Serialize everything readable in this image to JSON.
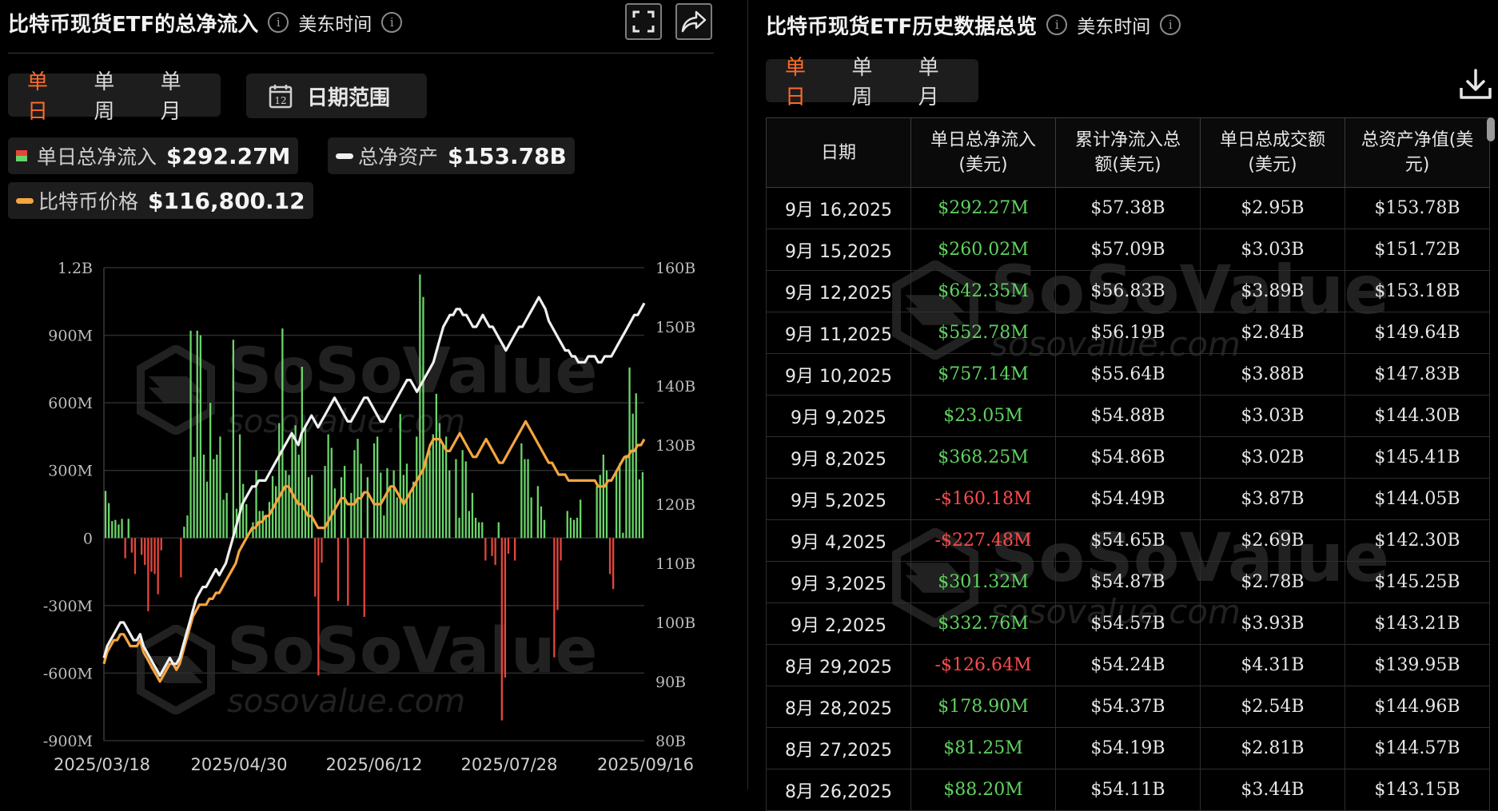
{
  "left": {
    "title": "比特币现货ETF的总净流入",
    "timezone": "美东时间",
    "tabs": [
      "单日",
      "单周",
      "单月"
    ],
    "active_tab": 0,
    "date_range_label": "日期范围",
    "calendar_day": "12",
    "legend": {
      "inflow_label": "单日总净流入",
      "inflow_value": "$292.27M",
      "assets_label": "总净资产",
      "assets_value": "$153.78B",
      "price_label": "比特币价格",
      "price_value": "$116,800.12"
    }
  },
  "right": {
    "title": "比特币现货ETF历史数据总览",
    "timezone": "美东时间",
    "tabs": [
      "单日",
      "单周",
      "单月"
    ],
    "active_tab": 0,
    "columns": [
      "日期",
      "单日总净流入\n(美元)",
      "累计净流入总\n额(美元)",
      "单日总成交额\n(美元)",
      "总资产净值(美\n元)"
    ],
    "rows": [
      [
        "9月 16,2025",
        "$292.27M",
        "$57.38B",
        "$2.95B",
        "$153.78B"
      ],
      [
        "9月 15,2025",
        "$260.02M",
        "$57.09B",
        "$3.03B",
        "$151.72B"
      ],
      [
        "9月 12,2025",
        "$642.35M",
        "$56.83B",
        "$3.89B",
        "$153.18B"
      ],
      [
        "9月 11,2025",
        "$552.78M",
        "$56.19B",
        "$2.84B",
        "$149.64B"
      ],
      [
        "9月 10,2025",
        "$757.14M",
        "$55.64B",
        "$3.88B",
        "$147.83B"
      ],
      [
        "9月 9,2025",
        "$23.05M",
        "$54.88B",
        "$3.03B",
        "$144.30B"
      ],
      [
        "9月 8,2025",
        "$368.25M",
        "$54.86B",
        "$3.02B",
        "$145.41B"
      ],
      [
        "9月 5,2025",
        "-$160.18M",
        "$54.49B",
        "$3.87B",
        "$144.05B"
      ],
      [
        "9月 4,2025",
        "-$227.48M",
        "$54.65B",
        "$2.69B",
        "$142.30B"
      ],
      [
        "9月 3,2025",
        "$301.32M",
        "$54.87B",
        "$2.78B",
        "$145.25B"
      ],
      [
        "9月 2,2025",
        "$332.76M",
        "$54.57B",
        "$3.93B",
        "$143.21B"
      ],
      [
        "8月 29,2025",
        "-$126.64M",
        "$54.24B",
        "$4.31B",
        "$139.95B"
      ],
      [
        "8月 28,2025",
        "$178.90M",
        "$54.37B",
        "$2.54B",
        "$144.96B"
      ],
      [
        "8月 27,2025",
        "$81.25M",
        "$54.19B",
        "$2.81B",
        "$144.57B"
      ],
      [
        "8月 26,2025",
        "$88.20M",
        "$54.11B",
        "$3.44B",
        "$143.15B"
      ]
    ]
  },
  "watermark": {
    "brand": "SoSoValue",
    "site": "sosovalue.com"
  },
  "colors": {
    "accent": "#ff6a2b",
    "positive": "#6ad46a",
    "negative": "#e5463c",
    "assets_line": "#f0f0f0",
    "price_line": "#f5a540"
  },
  "chart_data": {
    "type": "bar",
    "title": "比特币现货ETF的总净流入",
    "x_tick_labels": [
      "2025/03/18",
      "2025/04/30",
      "2025/06/12",
      "2025/07/28",
      "2025/09/16"
    ],
    "y_left": {
      "ticks": [
        "1.2B",
        "900M",
        "600M",
        "300M",
        "0",
        "-300M",
        "-600M",
        "-900M"
      ],
      "range": [
        -900,
        1200
      ],
      "unit": "M"
    },
    "y_right": {
      "ticks": [
        "160B",
        "150B",
        "140B",
        "130B",
        "120B",
        "110B",
        "100B",
        "90B",
        "80B"
      ],
      "range": [
        80,
        160
      ],
      "unit": "B"
    },
    "series": [
      {
        "name": "单日总净流入",
        "kind": "bar",
        "values": [
          209,
          155,
          75,
          80,
          60,
          85,
          -90,
          85,
          -65,
          -160,
          0,
          -75,
          -120,
          -325,
          -150,
          -160,
          -250,
          -55,
          0,
          0,
          0,
          0,
          0,
          -175,
          50,
          100,
          920,
          360,
          920,
          900,
          370,
          250,
          600,
          350,
          370,
          450,
          170,
          200,
          0,
          880,
          130,
          460,
          240,
          150,
          0,
          70,
          300,
          120,
          120,
          100,
          160,
          275,
          230,
          510,
          930,
          300,
          280,
          460,
          500,
          370,
          760,
          500,
          270,
          280,
          -260,
          -610,
          -110,
          320,
          460,
          400,
          220,
          -280,
          270,
          320,
          -300,
          200,
          390,
          440,
          330,
          -350,
          270,
          0,
          420,
          450,
          290,
          100,
          310,
          220,
          300,
          180,
          550,
          280,
          330,
          200,
          250,
          450,
          1170,
          1070,
          360,
          390,
          460,
          640,
          510,
          420,
          450,
          300,
          0,
          350,
          90,
          390,
          340,
          120,
          200,
          90,
          70,
          70,
          -100,
          0,
          -80,
          -120,
          70,
          -810,
          -620,
          -70,
          0,
          -100,
          0,
          420,
          350,
          350,
          180,
          0,
          230,
          140,
          80,
          0,
          0,
          -530,
          -320,
          -100,
          0,
          120,
          90,
          80,
          90,
          170,
          0,
          0,
          0,
          0,
          230,
          280,
          370,
          300,
          -160,
          -227,
          300,
          332,
          23,
          368,
          757,
          552,
          642,
          260,
          292
        ]
      },
      {
        "name": "总净资产",
        "kind": "line",
        "axis": "right",
        "values": [
          94,
          96,
          97,
          98,
          99,
          100,
          100,
          99,
          98,
          97,
          97,
          98,
          96,
          95,
          94,
          93,
          92,
          91,
          92,
          93,
          94,
          93,
          93,
          94,
          96,
          98,
          100,
          102,
          104,
          105,
          106,
          106,
          107,
          108,
          109,
          108,
          109,
          110,
          112,
          114,
          116,
          118,
          120,
          121,
          122,
          123,
          123,
          124,
          124,
          124,
          125,
          126,
          127,
          128,
          129,
          130,
          131,
          132,
          131,
          130,
          132,
          133,
          134,
          135,
          134,
          133,
          134,
          135,
          136,
          137,
          138,
          137,
          136,
          135,
          134,
          134,
          135,
          136,
          137,
          138,
          138,
          137,
          136,
          135,
          134,
          134,
          135,
          136,
          137,
          138,
          139,
          140,
          141,
          141,
          140,
          139,
          140,
          141,
          142,
          143,
          144,
          146,
          148,
          150,
          151,
          152,
          152,
          153,
          153,
          152,
          152,
          151,
          150,
          150,
          151,
          152,
          151,
          150,
          150,
          149,
          148,
          147,
          146,
          147,
          148,
          149,
          150,
          150,
          151,
          152,
          153,
          154,
          155,
          154,
          153,
          151,
          150,
          149,
          148,
          147,
          146,
          146,
          145,
          145,
          144,
          144,
          144,
          145,
          145,
          145,
          144,
          144,
          145,
          145,
          145,
          146,
          147,
          148,
          149,
          150,
          151,
          152,
          152,
          153,
          154
        ]
      },
      {
        "name": "比特币价格",
        "kind": "line",
        "axis": "right",
        "values": [
          93,
          95,
          96,
          97,
          97,
          98,
          98,
          97,
          96,
          96,
          96,
          97,
          95,
          94,
          93,
          92,
          91,
          90,
          91,
          92,
          93,
          93,
          92,
          93,
          95,
          97,
          99,
          101,
          102,
          103,
          103,
          103,
          104,
          104,
          105,
          105,
          106,
          107,
          108,
          109,
          110,
          112,
          113,
          114,
          115,
          116,
          116,
          117,
          117,
          118,
          118,
          119,
          120,
          121,
          122,
          123,
          123,
          122,
          121,
          120,
          120,
          119,
          118,
          118,
          117,
          116,
          116,
          116,
          117,
          118,
          119,
          120,
          121,
          121,
          120,
          120,
          120,
          121,
          121,
          122,
          122,
          121,
          120,
          120,
          120,
          121,
          122,
          123,
          123,
          122,
          121,
          120,
          121,
          122,
          123,
          124,
          125,
          126,
          128,
          130,
          131,
          131,
          131,
          130,
          129,
          129,
          130,
          131,
          132,
          131,
          130,
          129,
          128,
          128,
          129,
          130,
          131,
          130,
          129,
          128,
          127,
          127,
          128,
          129,
          130,
          131,
          132,
          133,
          134,
          133,
          132,
          131,
          130,
          129,
          128,
          127,
          127,
          126,
          125,
          125,
          125,
          124,
          124,
          124,
          124,
          124,
          124,
          124,
          124,
          124,
          123,
          123,
          123,
          124,
          124,
          125,
          126,
          127,
          128,
          128,
          129,
          129,
          130,
          130,
          131
        ]
      }
    ]
  }
}
